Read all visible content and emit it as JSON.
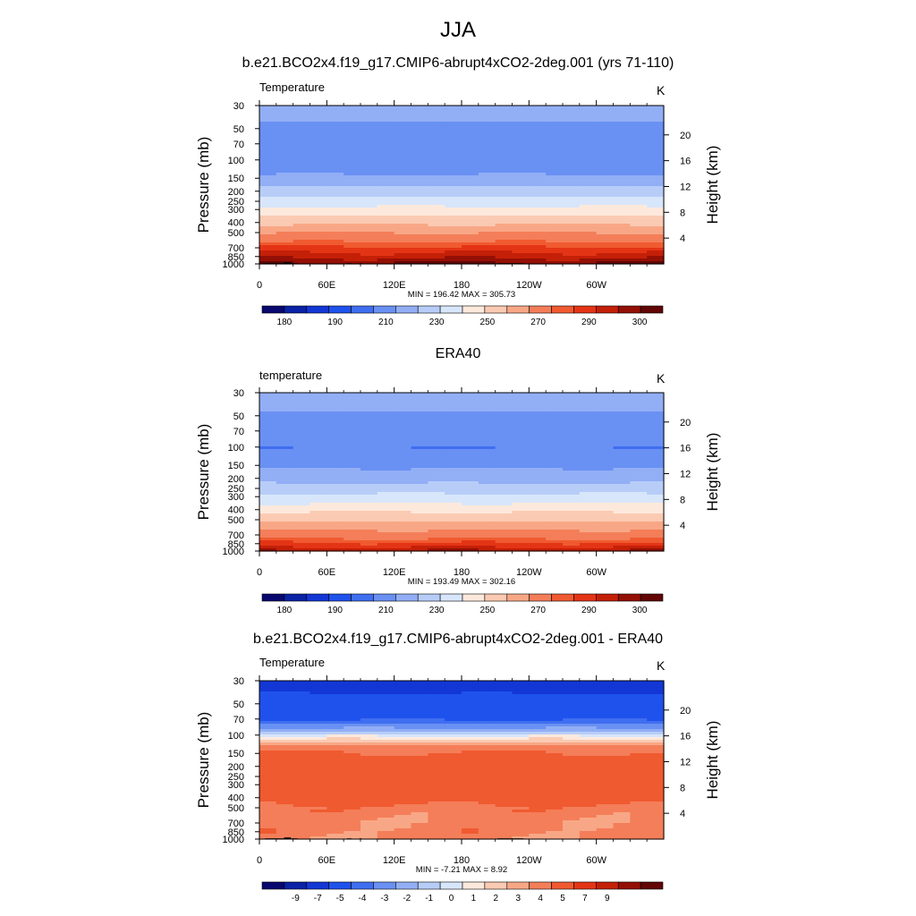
{
  "figure": {
    "title": "JJA",
    "colors": {
      "temp_palette": [
        "#08086f",
        "#0a22a5",
        "#1337d5",
        "#1f52ec",
        "#3f6ef0",
        "#6990f3",
        "#92aef5",
        "#b7cdf8",
        "#d8e6fb",
        "#fde9dc",
        "#fbcab2",
        "#f8a786",
        "#f47e59",
        "#f05a30",
        "#e43416",
        "#c42008",
        "#941006",
        "#620606"
      ],
      "diff_palette": [
        "#08086f",
        "#0a22a5",
        "#1337d5",
        "#1f52ec",
        "#3f6ef0",
        "#6990f3",
        "#92aef5",
        "#b7cdf8",
        "#d8e6fb",
        "#fde9dc",
        "#fbcab2",
        "#f8a786",
        "#f47e59",
        "#f05a30",
        "#e43416",
        "#c42008",
        "#941006",
        "#620606"
      ],
      "missing": "#000000"
    }
  },
  "chart_data": [
    {
      "type": "heatmap",
      "title": "b.e21.BCO2x4.f19_g17.CMIP6-abrupt4xCO2-2deg.001 (yrs 71-110)",
      "variable_label": "Temperature",
      "units": "K",
      "xlabel": "",
      "ylabel": "Pressure (mb)",
      "y2label": "Height (km)",
      "x_ticks": [
        "0",
        "60E",
        "120E",
        "180",
        "120W",
        "60W"
      ],
      "x_tick_values": [
        0,
        60,
        120,
        180,
        240,
        300
      ],
      "xlim": [
        0,
        360
      ],
      "y_ticks": [
        30,
        50,
        70,
        100,
        150,
        200,
        250,
        300,
        400,
        500,
        700,
        850,
        1000
      ],
      "ylim": [
        1000,
        30
      ],
      "y2_ticks": [
        20,
        16,
        12,
        8,
        4
      ],
      "minmax_text": "MIN = 196.42  MAX = 305.73",
      "colorbar_labels": [
        "180",
        "190",
        "210",
        "230",
        "250",
        "270",
        "290",
        "300"
      ],
      "contour_levels": [
        175,
        180,
        185,
        190,
        200,
        210,
        220,
        230,
        240,
        250,
        260,
        270,
        280,
        285,
        290,
        295,
        300
      ],
      "profile": [
        {
          "p": 30,
          "v": 214
        },
        {
          "p": 50,
          "v": 208
        },
        {
          "p": 70,
          "v": 204
        },
        {
          "p": 100,
          "v": 202
        },
        {
          "p": 130,
          "v": 208
        },
        {
          "p": 160,
          "v": 215
        },
        {
          "p": 200,
          "v": 225
        },
        {
          "p": 250,
          "v": 234
        },
        {
          "p": 300,
          "v": 243
        },
        {
          "p": 400,
          "v": 258
        },
        {
          "p": 500,
          "v": 270
        },
        {
          "p": 700,
          "v": 286
        },
        {
          "p": 850,
          "v": 293
        },
        {
          "p": 925,
          "v": 297
        },
        {
          "p": 1000,
          "v": 302
        }
      ],
      "has_missing": true
    },
    {
      "type": "heatmap",
      "title": "ERA40",
      "variable_label": "temperature",
      "units": "K",
      "xlabel": "",
      "ylabel": "Pressure (mb)",
      "y2label": "Height (km)",
      "x_ticks": [
        "0",
        "60E",
        "120E",
        "180",
        "120W",
        "60W"
      ],
      "x_tick_values": [
        0,
        60,
        120,
        180,
        240,
        300
      ],
      "xlim": [
        0,
        360
      ],
      "y_ticks": [
        30,
        50,
        70,
        100,
        150,
        200,
        250,
        300,
        400,
        500,
        700,
        850,
        1000
      ],
      "ylim": [
        1000,
        30
      ],
      "y2_ticks": [
        20,
        16,
        12,
        8,
        4
      ],
      "minmax_text": "MIN = 193.49  MAX = 302.16",
      "colorbar_labels": [
        "180",
        "190",
        "210",
        "230",
        "250",
        "270",
        "290",
        "300"
      ],
      "contour_levels": [
        175,
        180,
        185,
        190,
        200,
        210,
        220,
        230,
        240,
        250,
        260,
        270,
        280,
        285,
        290,
        295,
        300
      ],
      "profile": [
        {
          "p": 30,
          "v": 214
        },
        {
          "p": 50,
          "v": 209
        },
        {
          "p": 70,
          "v": 205
        },
        {
          "p": 100,
          "v": 200
        },
        {
          "p": 130,
          "v": 205
        },
        {
          "p": 160,
          "v": 210
        },
        {
          "p": 200,
          "v": 216
        },
        {
          "p": 250,
          "v": 224
        },
        {
          "p": 300,
          "v": 233
        },
        {
          "p": 400,
          "v": 247
        },
        {
          "p": 500,
          "v": 258
        },
        {
          "p": 700,
          "v": 276
        },
        {
          "p": 850,
          "v": 286
        },
        {
          "p": 925,
          "v": 290
        },
        {
          "p": 1000,
          "v": 296
        }
      ],
      "has_missing": false
    },
    {
      "type": "heatmap",
      "title": "b.e21.BCO2x4.f19_g17.CMIP6-abrupt4xCO2-2deg.001 - ERA40",
      "variable_label": "Temperature",
      "units": "K",
      "xlabel": "",
      "ylabel": "Pressure (mb)",
      "y2label": "Height (km)",
      "x_ticks": [
        "0",
        "60E",
        "120E",
        "180",
        "120W",
        "60W"
      ],
      "x_tick_values": [
        0,
        60,
        120,
        180,
        240,
        300
      ],
      "xlim": [
        0,
        360
      ],
      "y_ticks": [
        30,
        50,
        70,
        100,
        150,
        200,
        250,
        300,
        400,
        500,
        700,
        850,
        1000
      ],
      "ylim": [
        1000,
        30
      ],
      "y2_ticks": [
        20,
        16,
        12,
        8,
        4
      ],
      "minmax_text": "MIN =  -7.21  MAX =   8.92",
      "colorbar_labels": [
        "-9",
        "-7",
        "-5",
        "-4",
        "-3",
        "-2",
        "-1",
        "0",
        "1",
        "2",
        "3",
        "4",
        "5",
        "7",
        "9"
      ],
      "contour_levels": [
        -9,
        -7,
        -5,
        -4,
        -3,
        -2,
        -1,
        0,
        1,
        2,
        3,
        4,
        5,
        7,
        9
      ],
      "profile": [
        {
          "p": 30,
          "v": -5.5
        },
        {
          "p": 50,
          "v": -4.6
        },
        {
          "p": 70,
          "v": -4.2
        },
        {
          "p": 90,
          "v": -1.5
        },
        {
          "p": 105,
          "v": 1.5
        },
        {
          "p": 130,
          "v": 4.4
        },
        {
          "p": 170,
          "v": 5.6
        },
        {
          "p": 250,
          "v": 6.2
        },
        {
          "p": 400,
          "v": 6.0
        },
        {
          "p": 500,
          "v": 4.6
        },
        {
          "p": 700,
          "v": 4.3
        },
        {
          "p": 850,
          "v": 4.5
        },
        {
          "p": 1000,
          "v": 4.2
        }
      ],
      "has_missing": true
    }
  ]
}
